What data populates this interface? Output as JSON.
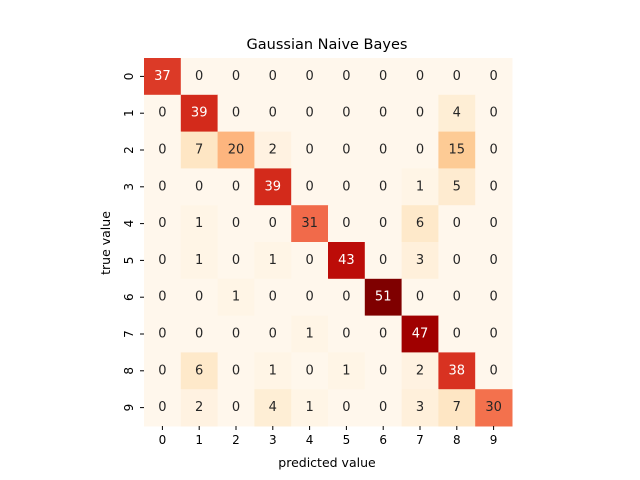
{
  "chart_data": {
    "type": "heatmap",
    "title": "Gaussian Naive Bayes",
    "xlabel": "predicted value",
    "ylabel": "true value",
    "x_categories": [
      "0",
      "1",
      "2",
      "3",
      "4",
      "5",
      "6",
      "7",
      "8",
      "9"
    ],
    "y_categories": [
      "0",
      "1",
      "2",
      "3",
      "4",
      "5",
      "6",
      "7",
      "8",
      "9"
    ],
    "colormap": "OrRd",
    "value_range": [
      0,
      51
    ],
    "colorbar": false,
    "values": [
      [
        37,
        0,
        0,
        0,
        0,
        0,
        0,
        0,
        0,
        0
      ],
      [
        0,
        39,
        0,
        0,
        0,
        0,
        0,
        0,
        4,
        0
      ],
      [
        0,
        7,
        20,
        2,
        0,
        0,
        0,
        0,
        15,
        0
      ],
      [
        0,
        0,
        0,
        39,
        0,
        0,
        0,
        1,
        5,
        0
      ],
      [
        0,
        1,
        0,
        0,
        31,
        0,
        0,
        6,
        0,
        0
      ],
      [
        0,
        1,
        0,
        1,
        0,
        43,
        0,
        3,
        0,
        0
      ],
      [
        0,
        0,
        1,
        0,
        0,
        0,
        51,
        0,
        0,
        0
      ],
      [
        0,
        0,
        0,
        0,
        1,
        0,
        0,
        47,
        0,
        0
      ],
      [
        0,
        6,
        0,
        1,
        0,
        1,
        0,
        2,
        38,
        0
      ],
      [
        0,
        2,
        0,
        4,
        1,
        0,
        0,
        3,
        7,
        30
      ]
    ]
  }
}
